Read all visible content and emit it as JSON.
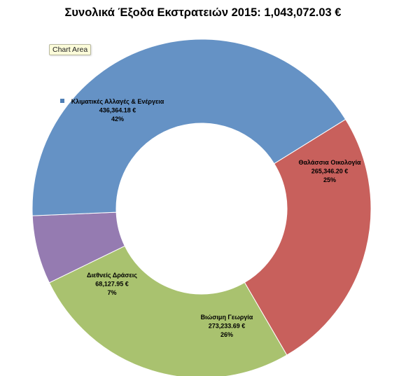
{
  "chart_data": {
    "type": "pie",
    "variant": "doughnut",
    "title": "Συνολικά Έξοδα Εκστρατειών 2015:  1,043,072.03 €",
    "slices": [
      {
        "name": "Θαλάσσια Οικολογία",
        "value": 265346.2,
        "value_label": "265,346.20 €",
        "percent_label": "25%",
        "color": "#c8605c"
      },
      {
        "name": "Βιώσιμη Γεωργία",
        "value": 273233.69,
        "value_label": "273,233.69 €",
        "percent_label": "26%",
        "color": "#a9c26f"
      },
      {
        "name": "Διεθνείς Δράσεις",
        "value": 68127.95,
        "value_label": "68,127.95 €",
        "percent_label": "7%",
        "color": "#957bb1"
      },
      {
        "name": "Κλιματικές Αλλαγές & Ενέργεια",
        "value": 436364.18,
        "value_label": "436,364.18 €",
        "percent_label": "42%",
        "color": "#6592c5"
      }
    ],
    "legend": "none",
    "grid": false
  },
  "tooltip": {
    "text": "Chart Area"
  }
}
